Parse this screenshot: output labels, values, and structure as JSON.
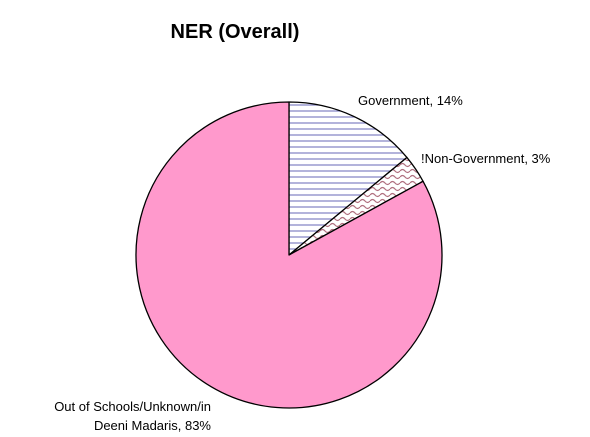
{
  "chart_data": {
    "type": "pie",
    "title": "NER (Overall)",
    "start_angle_deg": 0,
    "direction": "clockwise",
    "slices": [
      {
        "label": "Government, 14%",
        "label_lines": [
          "Government, 14%"
        ],
        "value": 14,
        "fill": "#ffffff",
        "pattern": "horizontal-lines",
        "pattern_color": "#8a8ac8"
      },
      {
        "label": "!Non-Government, 3%",
        "label_lines": [
          "!Non-Government, 3%"
        ],
        "value": 3,
        "fill": "#ffffff",
        "pattern": "wave",
        "pattern_color": "#b07080"
      },
      {
        "label": "Out of Schools/Unknown/in Deeni Madaris, 83%",
        "label_lines": [
          "Out of Schools/Unknown/in",
          "Deeni Madaris, 83%"
        ],
        "value": 83,
        "fill": "#ff99cc",
        "pattern": "solid",
        "pattern_color": "#ff99cc"
      }
    ],
    "legend": "none",
    "outline_color": "#000000"
  }
}
